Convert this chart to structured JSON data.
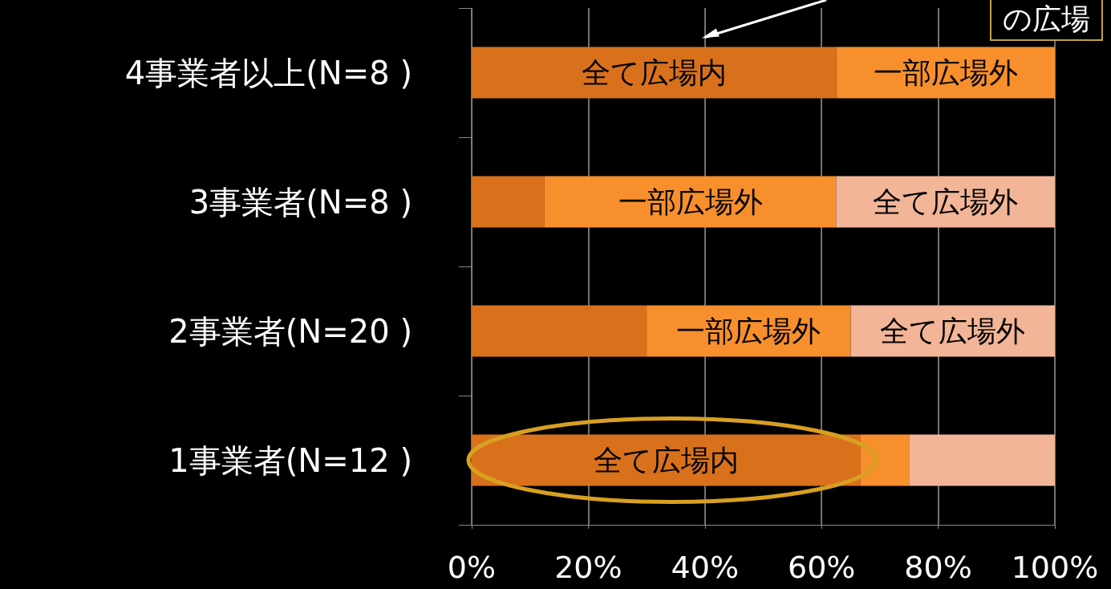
{
  "chart_data": {
    "type": "bar",
    "orientation": "horizontal",
    "stacked": true,
    "categories": [
      "4事業者以上(N=8 )",
      "3事業者(N=8 )",
      "2事業者(N=20 )",
      "1事業者(N=12 )"
    ],
    "series": [
      {
        "color": "#d9711c",
        "values": [
          62.5,
          12.5,
          30,
          66.7
        ],
        "value_labels": [
          "全て広場内",
          null,
          null,
          "全て広場内"
        ]
      },
      {
        "color": "#f78f2c",
        "values": [
          37.5,
          50,
          35,
          8.3
        ],
        "value_labels": [
          "一部広場外",
          "一部広場外",
          "一部広場外",
          null
        ]
      },
      {
        "color": "#f2b597",
        "values": [
          0,
          37.5,
          35,
          25
        ],
        "value_labels": [
          null,
          "全て広場外",
          "全て広場外",
          null
        ]
      }
    ],
    "xlim": [
      0,
      100
    ],
    "xticks": [
      {
        "value": 0,
        "label": "0%"
      },
      {
        "value": 20,
        "label": "20%"
      },
      {
        "value": 40,
        "label": "40%"
      },
      {
        "value": 60,
        "label": "60%"
      },
      {
        "value": 80,
        "label": "80%"
      },
      {
        "value": 100,
        "label": "100%"
      }
    ],
    "grid": "x",
    "annotations": [
      "の広場"
    ]
  }
}
